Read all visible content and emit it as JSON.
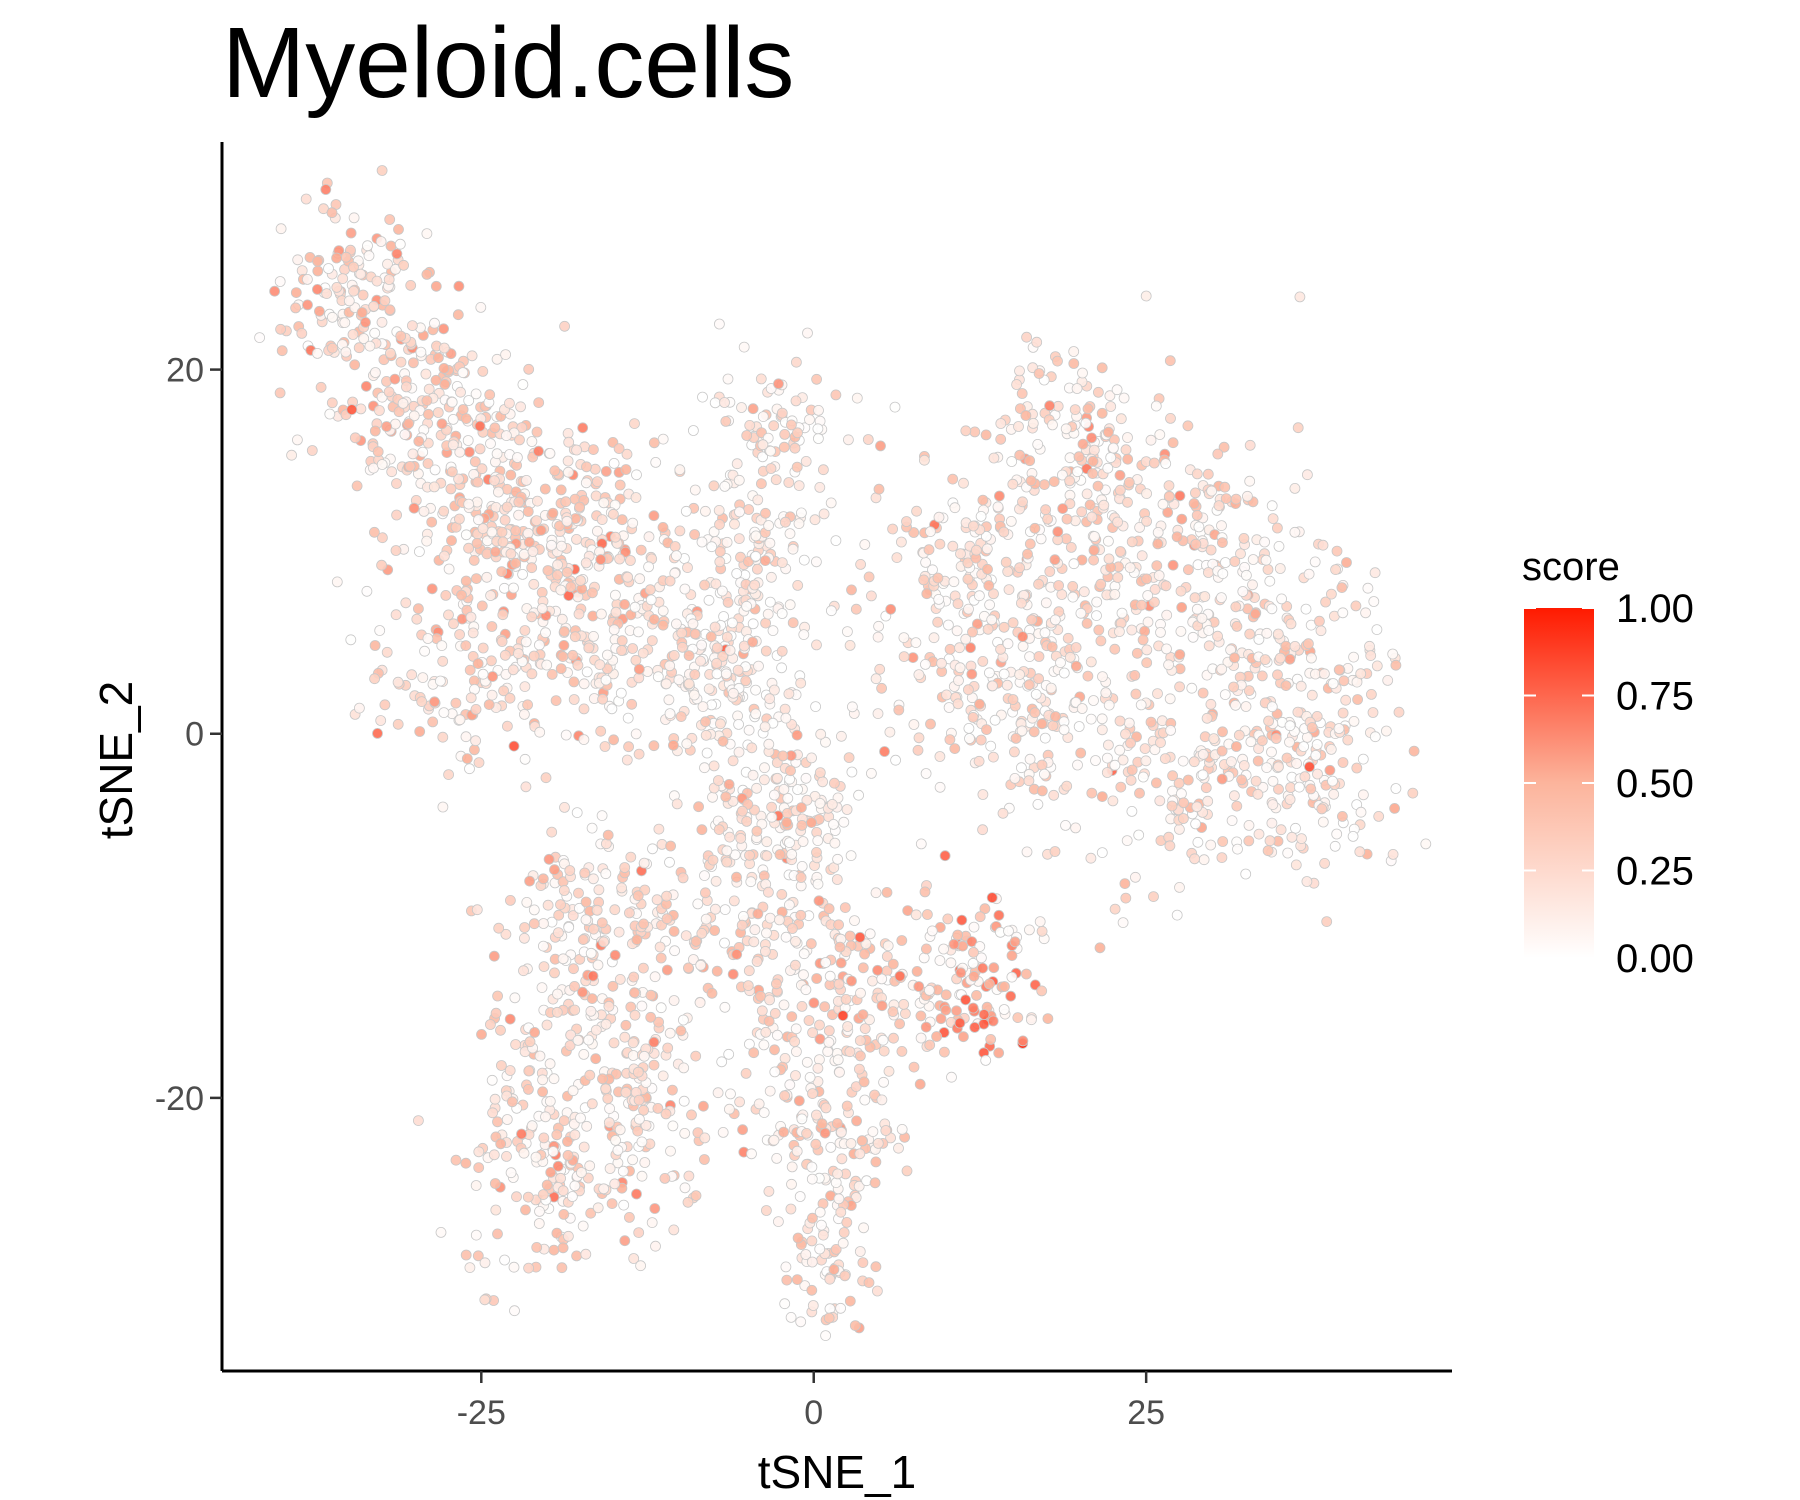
{
  "chart_data": {
    "type": "scatter",
    "title": "Myeloid.cells",
    "xlabel": "tSNE_1",
    "ylabel": "tSNE_2",
    "xlim": [
      -44.5,
      48
    ],
    "ylim": [
      -35,
      32.5
    ],
    "x_ticks": [
      -25,
      0,
      25
    ],
    "x_tick_labels": [
      "-25",
      "0",
      "25"
    ],
    "y_ticks": [
      -20,
      0,
      20
    ],
    "y_tick_labels": [
      "-20",
      "0",
      "20"
    ],
    "grid": false,
    "legend": {
      "title": "score",
      "position": "right",
      "type": "colorbar",
      "range": [
        0,
        1
      ],
      "breaks": [
        0,
        0.25,
        0.5,
        0.75,
        1
      ],
      "break_labels": [
        "0.00",
        "0.25",
        "0.50",
        "0.75",
        "1.00"
      ],
      "low_color": "#ffffff",
      "high_color": "#ff1a00"
    },
    "clusters": [
      {
        "region": "upper-left arm",
        "x_range": [
          -40,
          -12
        ],
        "y_range": [
          0,
          28
        ],
        "mean_score": 0.35
      },
      {
        "region": "upper-middle lobe",
        "x_range": [
          -8,
          2
        ],
        "y_range": [
          -2,
          20
        ],
        "mean_score": 0.2
      },
      {
        "region": "right lobe",
        "x_range": [
          5,
          45
        ],
        "y_range": [
          -8,
          23
        ],
        "mean_score": 0.28
      },
      {
        "region": "lower-left lobe",
        "x_range": [
          -26,
          -5
        ],
        "y_range": [
          -30,
          -6
        ],
        "mean_score": 0.3
      },
      {
        "region": "lower-middle lobe",
        "x_range": [
          -5,
          8
        ],
        "y_range": [
          -32,
          -5
        ],
        "mean_score": 0.3
      },
      {
        "region": "lower-right spur",
        "x_range": [
          5,
          18
        ],
        "y_range": [
          -18,
          -8
        ],
        "mean_score": 0.55
      }
    ]
  }
}
